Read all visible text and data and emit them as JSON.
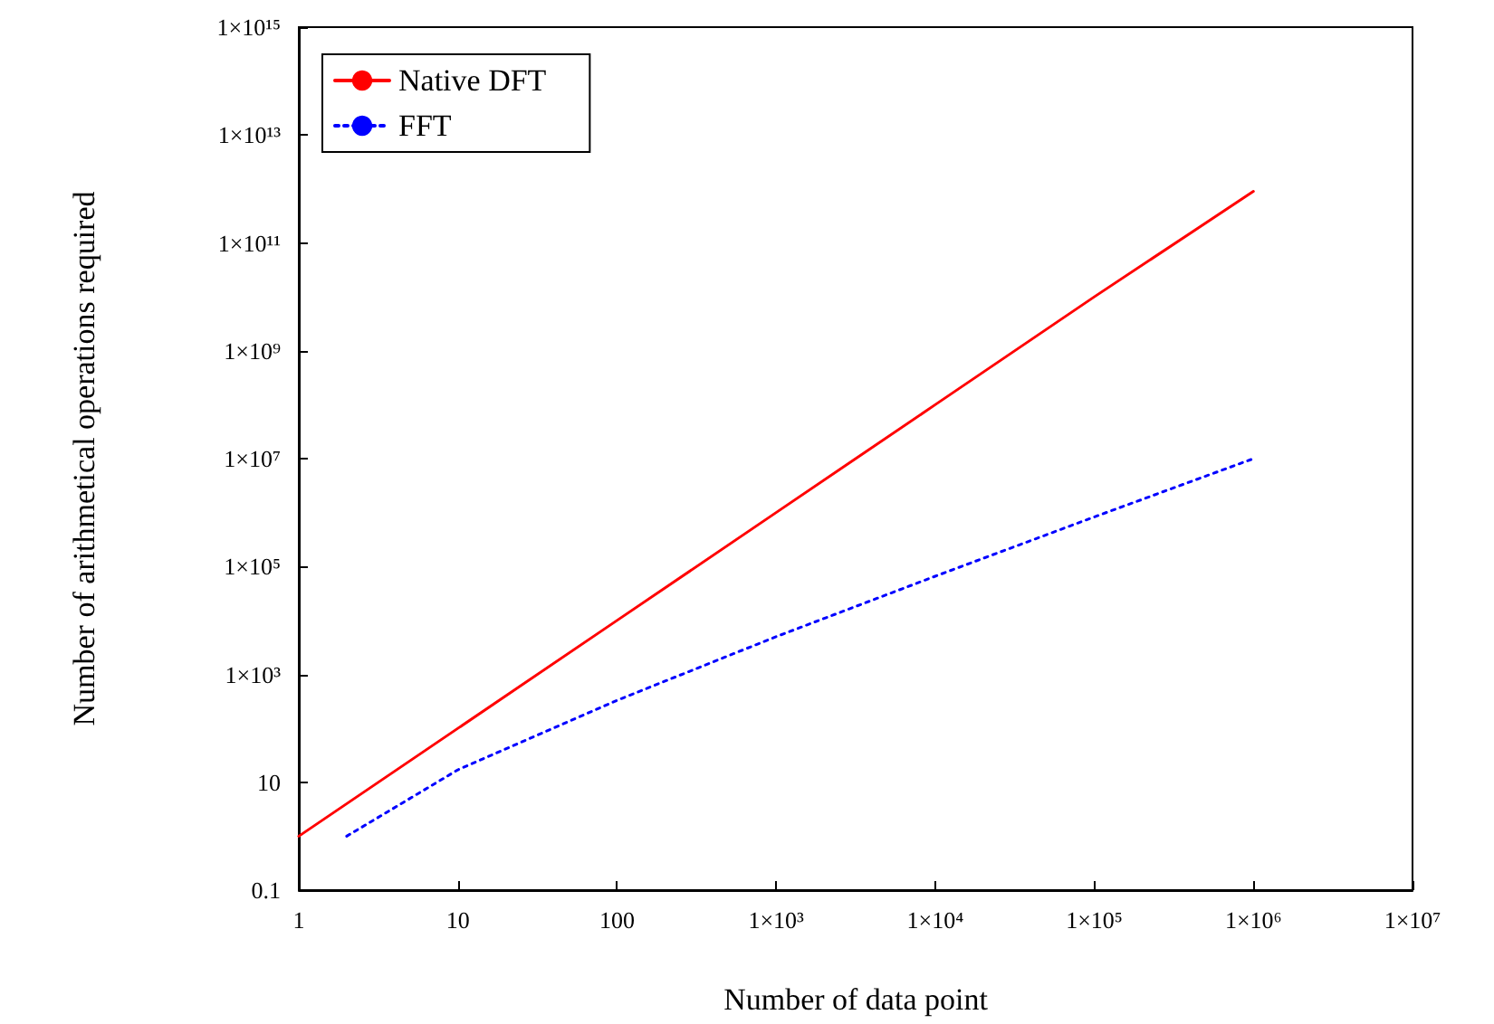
{
  "chart_data": {
    "type": "line",
    "xlabel": "Number of data point",
    "ylabel": "Number of arithmetical operations required",
    "log": "xy",
    "marker": "none",
    "grid": false,
    "legend": "top left",
    "xlim": [
      1,
      10000000
    ],
    "ylim": [
      0.1,
      1000000000000000
    ],
    "xticks": [
      1,
      10,
      100,
      {
        "value": 1000,
        "label": "1×10³"
      },
      {
        "value": 10000,
        "label": "1×10⁴"
      },
      {
        "value": 100000,
        "label": "1×10⁵"
      },
      {
        "value": 1000000,
        "label": "1×10⁶"
      },
      {
        "value": 10000000,
        "label": "1×10⁷"
      }
    ],
    "yticks": [
      0.1,
      10,
      {
        "value": 1000,
        "label": "1×10³"
      },
      {
        "value": 100000,
        "label": "1×10⁵"
      },
      {
        "value": 10000000,
        "label": "1×10⁷"
      },
      {
        "value": 1000000000,
        "label": "1×10⁹"
      },
      {
        "value": 100000000000,
        "label": "1×10¹¹"
      },
      {
        "value": 10000000000000,
        "label": "1×10¹³"
      },
      {
        "value": 1000000000000000,
        "label": "1×10¹⁵"
      }
    ],
    "series": [
      {
        "name": "Native DFT",
        "color": "#ff0000",
        "line_style": "solid",
        "x": [
          1,
          10,
          100,
          1000,
          10000,
          100000,
          1000000
        ],
        "values": [
          1,
          100,
          10000,
          1000000,
          100000000,
          10000000000,
          900000000000
        ]
      },
      {
        "name": "FFT",
        "color": "#0000ff",
        "line_style": "dotted",
        "x": [
          2,
          10,
          100,
          1000,
          10000,
          100000,
          1000000
        ],
        "values": [
          1,
          17,
          330,
          5000,
          66000,
          830000,
          10000000
        ]
      }
    ]
  }
}
